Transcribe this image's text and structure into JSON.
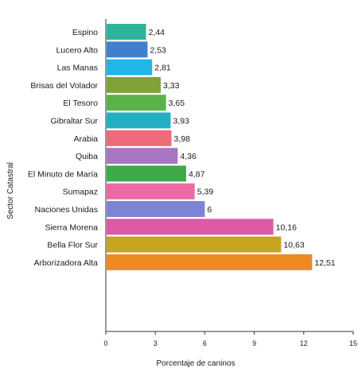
{
  "chart_data": {
    "type": "bar",
    "orientation": "horizontal",
    "categories": [
      "Espino",
      "Lucero Alto",
      "Las Manas",
      "Brisas del Volador",
      "El Tesoro",
      "Gibraltar Sur",
      "Arabia",
      "Quiba",
      "El  Minuto de María",
      "Sumapaz",
      "Naciones Unidas",
      "Sierra Morena",
      "Bella Flor Sur",
      "Arborizadora Alta"
    ],
    "values": [
      2.44,
      2.53,
      2.81,
      3.33,
      3.65,
      3.93,
      3.98,
      4.36,
      4.87,
      5.39,
      6,
      10.16,
      10.63,
      12.51
    ],
    "value_labels": [
      "2,44",
      "2,53",
      "2,81",
      "3,33",
      "3,65",
      "3,93",
      "3,98",
      "4,36",
      "4,87",
      "5,39",
      "6",
      "10,16",
      "10,63",
      "12,51"
    ],
    "colors": [
      "#2bb59a",
      "#3f7fd0",
      "#21b6e6",
      "#7fa23a",
      "#58b446",
      "#22afc3",
      "#ee6b7a",
      "#a877c4",
      "#3eaa49",
      "#ee6aa6",
      "#7d84d3",
      "#dc5aa8",
      "#c7a320",
      "#ec8a22"
    ],
    "xlim": [
      0,
      15
    ],
    "xticks": [
      "0",
      "3",
      "6",
      "9",
      "12",
      "15"
    ],
    "xlabel": "Porcentaje de caninos",
    "ylabel": "Sector Catastral",
    "grid": false,
    "legend": "none"
  }
}
